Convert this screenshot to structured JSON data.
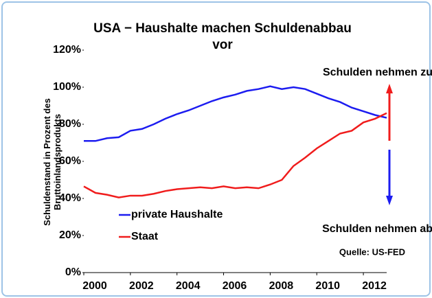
{
  "chart_data": {
    "type": "line",
    "title": "USA − Haushalte machen Schuldenabbau vor",
    "ylabel": "Schuldenstand in Prozent des Bruttoinlandsprodukts",
    "x": [
      2000,
      2000.5,
      2001,
      2001.5,
      2002,
      2002.5,
      2003,
      2003.5,
      2004,
      2004.5,
      2005,
      2005.5,
      2006,
      2006.5,
      2007,
      2007.5,
      2008,
      2008.5,
      2009,
      2009.5,
      2010,
      2010.5,
      2011,
      2011.5,
      2012,
      2012.5,
      2013
    ],
    "series": [
      {
        "name": "private Haushalte",
        "color": "#1c1cf0",
        "values": [
          71,
          71,
          72.5,
          73,
          76.5,
          77.5,
          80,
          83,
          85.5,
          87.5,
          90,
          92.5,
          94.5,
          96,
          98,
          99,
          100.5,
          99,
          100,
          99,
          96.5,
          94,
          92,
          89,
          87,
          85,
          83.5
        ]
      },
      {
        "name": "Staat",
        "color": "#f01c1c",
        "values": [
          46.5,
          43,
          42,
          40.5,
          41.5,
          41.5,
          42.5,
          44,
          45,
          45.5,
          46,
          45.5,
          46.5,
          45.5,
          46,
          45.5,
          47.5,
          50,
          57.5,
          62,
          67,
          71,
          75,
          76.5,
          81,
          83,
          86
        ]
      }
    ],
    "xlim": [
      2000,
      2013
    ],
    "xticks": [
      2000,
      2002,
      2004,
      2006,
      2008,
      2010,
      2012
    ],
    "ylim": [
      0,
      120
    ],
    "yticks": [
      {
        "value": 0,
        "label": "0%"
      },
      {
        "value": 20,
        "label": "20%"
      },
      {
        "value": 40,
        "label": "40%"
      },
      {
        "value": 60,
        "label": "60%"
      },
      {
        "value": 80,
        "label": "80%"
      },
      {
        "value": 100,
        "label": "100%"
      },
      {
        "value": 120,
        "label": "120%"
      }
    ],
    "grid": false,
    "legend": "lower left",
    "annotations": [
      "Schulden nehmen zu",
      "Schulden nehmen ab",
      "Quelle: US-FED"
    ]
  }
}
